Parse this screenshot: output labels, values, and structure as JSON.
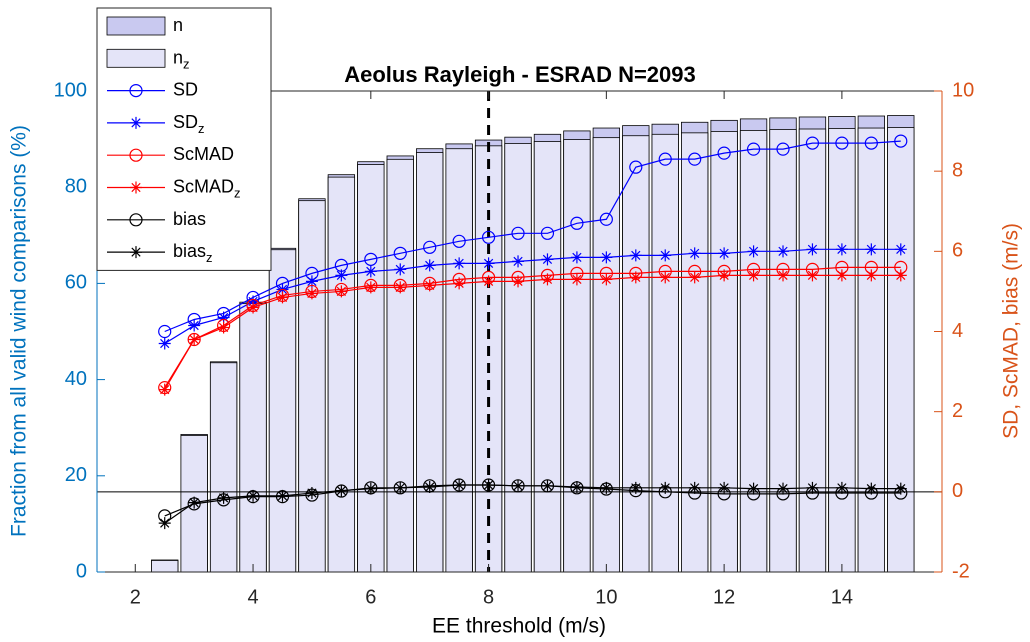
{
  "chart_data": {
    "type": "bar_line",
    "title": "Aeolus Rayleigh - ESRAD N=2093",
    "xlabel": "EE threshold (m/s)",
    "ylabel": "Fraction from all valid wind comparisons (%)",
    "y2label": "SD, ScMAD, bias (m/s)",
    "ylabel_color": "#0072bd",
    "y2label_color": "#d95319",
    "x": [
      2.5,
      3,
      3.5,
      4,
      4.5,
      5,
      5.5,
      6,
      6.5,
      7,
      7.5,
      8,
      8.5,
      9,
      9.5,
      10,
      10.5,
      11,
      11.5,
      12,
      12.5,
      13,
      13.5,
      14,
      14.5,
      15
    ],
    "xlim": [
      1.35,
      15.7
    ],
    "xticks": [
      2,
      4,
      6,
      8,
      10,
      12,
      14
    ],
    "ylim": [
      0,
      100
    ],
    "yticks": [
      0,
      20,
      40,
      60,
      80,
      100
    ],
    "y2lim": [
      -2,
      10
    ],
    "y2ticks": [
      -2,
      0,
      2,
      4,
      6,
      8,
      10
    ],
    "reference_lines": [
      {
        "axis": "x",
        "value": 8,
        "style": "dashed"
      },
      {
        "axis": "y2",
        "value": 0,
        "style": "solid"
      }
    ],
    "legend": "upper left",
    "series": [
      {
        "name": "n",
        "kind": "bar",
        "color": "#c9c9f0",
        "values": [
          2.5,
          28.6,
          43.7,
          56.1,
          67.3,
          77.6,
          82.6,
          85.3,
          86.5,
          88.0,
          89.0,
          89.8,
          90.4,
          91.0,
          91.7,
          92.3,
          92.8,
          93.1,
          93.5,
          93.9,
          94.2,
          94.4,
          94.6,
          94.7,
          94.8,
          94.9
        ]
      },
      {
        "name": "n",
        "name_subscript": "z",
        "kind": "bar",
        "color": "#e4e4f8",
        "values": [
          2.4,
          28.4,
          43.5,
          55.8,
          67.0,
          77.2,
          82.1,
          84.7,
          85.8,
          87.2,
          88.0,
          88.6,
          89.1,
          89.5,
          89.9,
          90.3,
          90.7,
          91.0,
          91.3,
          91.6,
          91.8,
          92.0,
          92.1,
          92.2,
          92.3,
          92.4
        ]
      },
      {
        "name": "SD",
        "kind": "line",
        "marker": "o",
        "axis": "y2",
        "color": "#0000ff",
        "values": [
          4.0,
          4.3,
          4.45,
          4.85,
          5.2,
          5.45,
          5.65,
          5.8,
          5.95,
          6.1,
          6.25,
          6.35,
          6.45,
          6.45,
          6.7,
          6.8,
          8.1,
          8.3,
          8.3,
          8.45,
          8.55,
          8.55,
          8.7,
          8.7,
          8.7,
          8.75
        ]
      },
      {
        "name": "SD",
        "name_subscript": "z",
        "kind": "line",
        "marker": "*",
        "axis": "y2",
        "color": "#0000ff",
        "values": [
          3.7,
          4.15,
          4.35,
          4.75,
          5.05,
          5.25,
          5.4,
          5.5,
          5.55,
          5.65,
          5.7,
          5.7,
          5.75,
          5.8,
          5.85,
          5.85,
          5.9,
          5.9,
          5.95,
          5.95,
          6.0,
          6.0,
          6.05,
          6.05,
          6.05,
          6.05
        ]
      },
      {
        "name": "ScMAD",
        "kind": "line",
        "marker": "o",
        "axis": "y2",
        "color": "#ff0000",
        "values": [
          2.6,
          3.8,
          4.15,
          4.65,
          4.9,
          5.0,
          5.05,
          5.15,
          5.15,
          5.2,
          5.3,
          5.35,
          5.35,
          5.4,
          5.45,
          5.45,
          5.45,
          5.5,
          5.5,
          5.5,
          5.55,
          5.55,
          5.55,
          5.6,
          5.6,
          5.6
        ]
      },
      {
        "name": "ScMAD",
        "name_subscript": "z",
        "kind": "line",
        "marker": "*",
        "axis": "y2",
        "color": "#ff0000",
        "values": [
          2.55,
          3.8,
          4.1,
          4.6,
          4.85,
          4.95,
          5.0,
          5.1,
          5.1,
          5.15,
          5.2,
          5.25,
          5.25,
          5.3,
          5.3,
          5.3,
          5.35,
          5.35,
          5.35,
          5.4,
          5.4,
          5.4,
          5.4,
          5.4,
          5.4,
          5.4
        ]
      },
      {
        "name": "bias",
        "kind": "line",
        "marker": "o",
        "axis": "y2",
        "color": "#000000",
        "values": [
          -0.6,
          -0.3,
          -0.2,
          -0.12,
          -0.12,
          -0.08,
          0.02,
          0.1,
          0.1,
          0.15,
          0.17,
          0.17,
          0.15,
          0.15,
          0.1,
          0.07,
          0.03,
          0.0,
          -0.03,
          -0.05,
          -0.05,
          -0.05,
          -0.03,
          -0.03,
          -0.03,
          -0.03
        ]
      },
      {
        "name": "bias",
        "name_subscript": "z",
        "kind": "line",
        "marker": "*",
        "axis": "y2",
        "color": "#000000",
        "values": [
          -0.78,
          -0.27,
          -0.15,
          -0.1,
          -0.1,
          -0.03,
          0.03,
          0.08,
          0.1,
          0.12,
          0.17,
          0.17,
          0.15,
          0.15,
          0.12,
          0.1,
          0.1,
          0.1,
          0.1,
          0.1,
          0.08,
          0.08,
          0.1,
          0.1,
          0.08,
          0.08
        ]
      }
    ]
  }
}
